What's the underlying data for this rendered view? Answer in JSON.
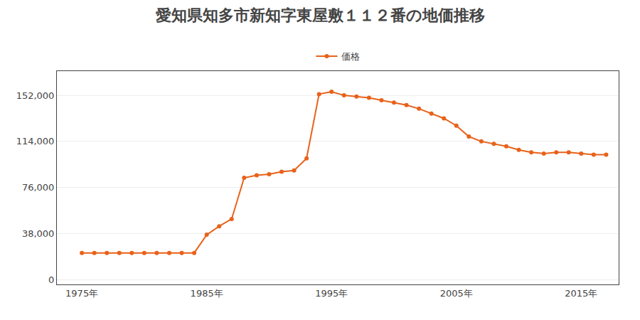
{
  "chart_data": {
    "type": "line",
    "title": "愛知県知多市新知字東屋敷１１２番の地価推移",
    "x": [
      1975,
      1976,
      1977,
      1978,
      1979,
      1980,
      1981,
      1982,
      1983,
      1984,
      1985,
      1986,
      1987,
      1988,
      1989,
      1990,
      1991,
      1992,
      1993,
      1994,
      1995,
      1996,
      1997,
      1998,
      1999,
      2000,
      2001,
      2002,
      2003,
      2004,
      2005,
      2006,
      2007,
      2008,
      2009,
      2010,
      2011,
      2012,
      2013,
      2014,
      2015,
      2016,
      2017
    ],
    "series": [
      {
        "name": "価格",
        "color": "#E8621A",
        "marker": "circle",
        "values": [
          22000,
          22000,
          22000,
          22000,
          22000,
          22000,
          22000,
          22000,
          22000,
          22000,
          37000,
          44000,
          50000,
          84000,
          86000,
          87000,
          89000,
          90000,
          100000,
          153000,
          155000,
          152000,
          151000,
          150000,
          148000,
          146000,
          144000,
          141000,
          137000,
          133000,
          127000,
          118000,
          114000,
          112000,
          110000,
          107000,
          105000,
          104000,
          105000,
          105000,
          104000,
          103000,
          103000
        ]
      }
    ],
    "xlim": [
      1973,
      2018
    ],
    "xticks": [
      {
        "value": 1975,
        "label": "1975年"
      },
      {
        "value": 1985,
        "label": "1985年"
      },
      {
        "value": 1995,
        "label": "1995年"
      },
      {
        "value": 2005,
        "label": "2005年"
      },
      {
        "value": 2015,
        "label": "2015年"
      }
    ],
    "ylim": [
      -4000,
      172000
    ],
    "yticks": [
      0,
      {
        "value": 38000,
        "label": "38,000"
      },
      {
        "value": 76000,
        "label": "76,000"
      },
      {
        "value": 114000,
        "label": "114,000"
      },
      {
        "value": 152000,
        "label": "152,000"
      }
    ],
    "grid": "y",
    "legend": "top"
  }
}
